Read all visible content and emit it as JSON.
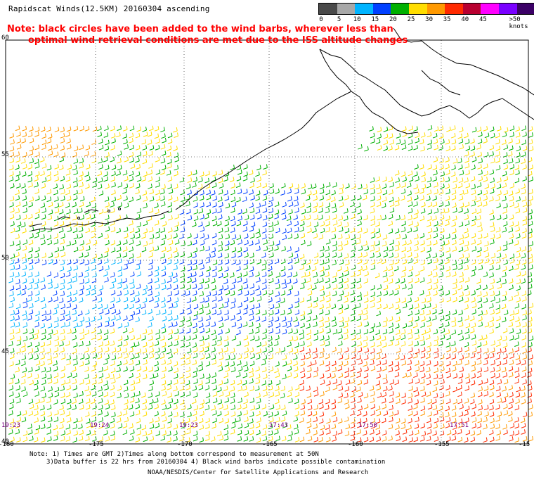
{
  "title": "Rapidscat Winds(12.5KM) 20160304 ascending",
  "note": {
    "line1": "Note: black circles have been added to the wind barbs, wherever less than",
    "line2": "optimal wind retrieval conditions are met due to the ISS altitude changes"
  },
  "legend": {
    "labels": [
      "0",
      "5",
      "10",
      "15",
      "20",
      "25",
      "30",
      "35",
      "40",
      "45",
      ">50 knots"
    ],
    "colors": [
      "#4a4a4a",
      "#a8a8a8",
      "#00b4ff",
      "#0040ff",
      "#00b000",
      "#ffdd00",
      "#ff9900",
      "#ff2a00",
      "#b80030",
      "#ff00ff",
      "#7a00ff",
      "#3b0066"
    ]
  },
  "axes": {
    "lat_labels": [
      "60",
      "55",
      "50",
      "45",
      "40"
    ],
    "lon_labels": [
      "-180",
      "-175",
      "-170",
      "-165",
      "-160",
      "-155",
      "-15"
    ]
  },
  "time_labels": [
    "19:23",
    "19:24",
    "19:23",
    "17:43",
    "17:50",
    "17:51"
  ],
  "footer": {
    "line1": "Note: 1) Times are GMT 2)Times along bottom correspond to measurement at 50N",
    "line2": "3)Data buffer is 22 hrs from 20160304 4) Black wind barbs indicate possible contamination",
    "line3": "NOAA/NESDIS/Center for Satellite Applications and Research"
  }
}
